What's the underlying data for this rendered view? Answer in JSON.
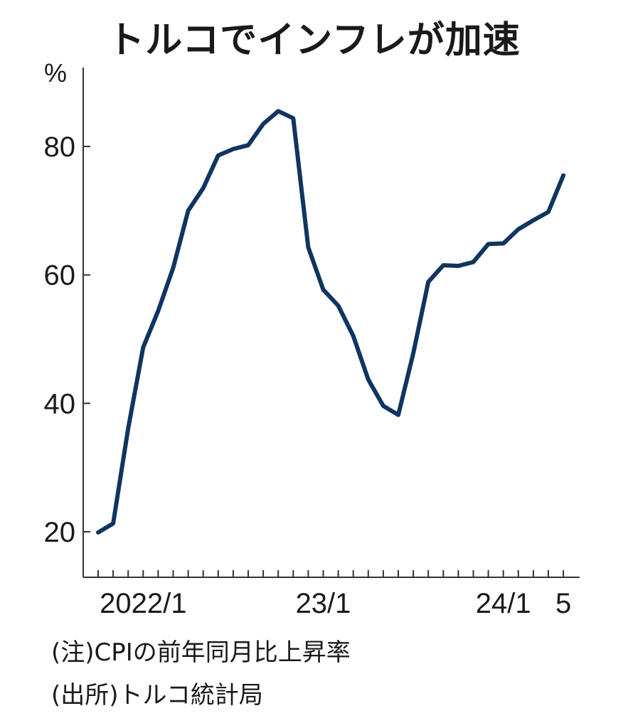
{
  "title": "トルコでインフレが加速",
  "unit": "%",
  "notes": {
    "note": "(注)CPIの前年同月比上昇率",
    "source": "(出所)トルコ統計局"
  },
  "colors": {
    "line": "#0f3560",
    "axis": "#333333"
  },
  "chart_data": {
    "type": "line",
    "title": "トルコでインフレが加速",
    "ylabel": "%",
    "xlabel": "",
    "ylim": [
      15,
      95
    ],
    "yticks": [
      20,
      40,
      60,
      80
    ],
    "ytick_labels": [
      "20",
      "40",
      "60",
      "80"
    ],
    "xtick_labels": [
      {
        "label": "2022/1",
        "index": 3
      },
      {
        "label": "23/1",
        "index": 15
      },
      {
        "label": "24/1",
        "index": 27
      },
      {
        "label": "5",
        "index": 31
      }
    ],
    "x": [
      "2021/10",
      "2021/11",
      "2021/12",
      "2022/1",
      "2022/2",
      "2022/3",
      "2022/4",
      "2022/5",
      "2022/6",
      "2022/7",
      "2022/8",
      "2022/9",
      "2022/10",
      "2022/11",
      "2022/12",
      "2023/1",
      "2023/2",
      "2023/3",
      "2023/4",
      "2023/5",
      "2023/6",
      "2023/7",
      "2023/8",
      "2023/9",
      "2023/10",
      "2023/11",
      "2023/12",
      "2024/1",
      "2024/2",
      "2024/3",
      "2024/4",
      "2024/5"
    ],
    "values": [
      19.9,
      21.3,
      36.1,
      48.7,
      54.4,
      61.1,
      70.0,
      73.5,
      78.6,
      79.6,
      80.2,
      83.5,
      85.5,
      84.4,
      64.3,
      57.7,
      55.2,
      50.5,
      43.7,
      39.6,
      38.2,
      47.8,
      58.9,
      61.5,
      61.4,
      62.0,
      64.8,
      64.9,
      67.1,
      68.5,
      69.8,
      75.5
    ]
  }
}
